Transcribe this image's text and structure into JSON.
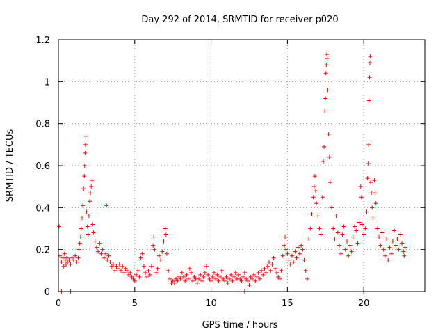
{
  "chart_data": {
    "type": "scatter",
    "title": "Day 292 of 2014, SRMTID for receiver p020",
    "xlabel": "GPS time / hours",
    "ylabel": "SRMTID / TECUs",
    "xlim": [
      0,
      24
    ],
    "ylim": [
      0,
      1.2
    ],
    "xticks": [
      0,
      5,
      10,
      15,
      20
    ],
    "xtick_labels": [
      "0",
      "5",
      "10",
      "15",
      "20"
    ],
    "yticks": [
      0,
      0.2,
      0.4,
      0.6,
      0.8,
      1,
      1.2
    ],
    "ytick_labels": [
      "0",
      "0.2",
      "0.4",
      "0.6",
      "0.8",
      "1",
      "1.2"
    ],
    "grid": true,
    "marker": "+",
    "color": "#ff0000",
    "series": [
      {
        "name": "SRMTID",
        "points": [
          [
            0.05,
            0.31
          ],
          [
            0.1,
            0.17
          ],
          [
            0.2,
            0.14
          ],
          [
            0.3,
            0.16
          ],
          [
            0.35,
            0.12
          ],
          [
            0.4,
            0.18
          ],
          [
            0.45,
            0.15
          ],
          [
            0.5,
            0.13
          ],
          [
            0.55,
            0.16
          ],
          [
            0.6,
            0.14
          ],
          [
            0.7,
            0.15
          ],
          [
            0.8,
            0.13
          ],
          [
            0.9,
            0.16
          ],
          [
            1.0,
            0.15
          ],
          [
            1.1,
            0.17
          ],
          [
            1.2,
            0.14
          ],
          [
            1.3,
            0.16
          ],
          [
            1.35,
            0.2
          ],
          [
            1.4,
            0.23
          ],
          [
            1.45,
            0.26
          ],
          [
            1.5,
            0.3
          ],
          [
            1.55,
            0.35
          ],
          [
            1.6,
            0.41
          ],
          [
            1.65,
            0.49
          ],
          [
            1.7,
            0.55
          ],
          [
            1.72,
            0.6
          ],
          [
            1.75,
            0.66
          ],
          [
            1.77,
            0.7
          ],
          [
            1.8,
            0.74
          ],
          [
            1.85,
            0.38
          ],
          [
            1.9,
            0.31
          ],
          [
            1.95,
            0.27
          ],
          [
            2.0,
            0.36
          ],
          [
            2.05,
            0.43
          ],
          [
            2.1,
            0.47
          ],
          [
            2.15,
            0.5
          ],
          [
            2.2,
            0.53
          ],
          [
            2.25,
            0.32
          ],
          [
            2.3,
            0.28
          ],
          [
            2.4,
            0.24
          ],
          [
            2.5,
            0.21
          ],
          [
            2.6,
            0.19
          ],
          [
            2.7,
            0.23
          ],
          [
            2.8,
            0.18
          ],
          [
            2.9,
            0.2
          ],
          [
            3.0,
            0.16
          ],
          [
            3.1,
            0.18
          ],
          [
            3.15,
            0.41
          ],
          [
            3.2,
            0.15
          ],
          [
            3.3,
            0.17
          ],
          [
            3.4,
            0.14
          ],
          [
            3.5,
            0.12
          ],
          [
            3.6,
            0.13
          ],
          [
            3.7,
            0.1
          ],
          [
            3.8,
            0.12
          ],
          [
            3.9,
            0.11
          ],
          [
            4.0,
            0.13
          ],
          [
            4.1,
            0.1
          ],
          [
            4.2,
            0.12
          ],
          [
            4.3,
            0.09
          ],
          [
            4.4,
            0.11
          ],
          [
            4.5,
            0.1
          ],
          [
            4.6,
            0.08
          ],
          [
            4.7,
            0.09
          ],
          [
            4.8,
            0.07
          ],
          [
            4.9,
            0.06
          ],
          [
            5.0,
            0.05
          ],
          [
            5.1,
            0.08
          ],
          [
            5.2,
            0.1
          ],
          [
            5.3,
            0.07
          ],
          [
            5.4,
            0.16
          ],
          [
            5.5,
            0.18
          ],
          [
            5.6,
            0.12
          ],
          [
            5.7,
            0.09
          ],
          [
            5.8,
            0.07
          ],
          [
            5.9,
            0.1
          ],
          [
            6.0,
            0.08
          ],
          [
            6.1,
            0.12
          ],
          [
            6.2,
            0.22
          ],
          [
            6.25,
            0.26
          ],
          [
            6.3,
            0.2
          ],
          [
            6.4,
            0.09
          ],
          [
            6.5,
            0.11
          ],
          [
            6.6,
            0.17
          ],
          [
            6.7,
            0.15
          ],
          [
            6.8,
            0.19
          ],
          [
            6.9,
            0.24
          ],
          [
            7.0,
            0.3
          ],
          [
            7.05,
            0.27
          ],
          [
            7.1,
            0.18
          ],
          [
            7.2,
            0.1
          ],
          [
            7.3,
            0.06
          ],
          [
            7.4,
            0.04
          ],
          [
            7.5,
            0.05
          ],
          [
            7.6,
            0.04
          ],
          [
            7.7,
            0.06
          ],
          [
            7.8,
            0.05
          ],
          [
            7.9,
            0.07
          ],
          [
            8.0,
            0.06
          ],
          [
            8.1,
            0.09
          ],
          [
            8.2,
            0.07
          ],
          [
            8.3,
            0.05
          ],
          [
            8.4,
            0.08
          ],
          [
            8.5,
            0.06
          ],
          [
            8.6,
            0.11
          ],
          [
            8.7,
            0.09
          ],
          [
            8.8,
            0.05
          ],
          [
            8.9,
            0.07
          ],
          [
            9.0,
            0.06
          ],
          [
            9.1,
            0.04
          ],
          [
            9.2,
            0.06
          ],
          [
            9.3,
            0.08
          ],
          [
            9.4,
            0.05
          ],
          [
            9.5,
            0.07
          ],
          [
            9.6,
            0.09
          ],
          [
            9.7,
            0.12
          ],
          [
            9.8,
            0.08
          ],
          [
            9.9,
            0.06
          ],
          [
            10.0,
            0.05
          ],
          [
            10.1,
            0.07
          ],
          [
            10.2,
            0.09
          ],
          [
            10.3,
            0.06
          ],
          [
            10.4,
            0.08
          ],
          [
            10.5,
            0.05
          ],
          [
            10.6,
            0.07
          ],
          [
            10.7,
            0.1
          ],
          [
            10.8,
            0.06
          ],
          [
            10.9,
            0.05
          ],
          [
            11.0,
            0.07
          ],
          [
            11.1,
            0.04
          ],
          [
            11.2,
            0.06
          ],
          [
            11.3,
            0.08
          ],
          [
            11.4,
            0.05
          ],
          [
            11.5,
            0.07
          ],
          [
            11.6,
            0.09
          ],
          [
            11.7,
            0.06
          ],
          [
            11.8,
            0.08
          ],
          [
            11.9,
            0.06
          ],
          [
            12.0,
            0.05
          ],
          [
            12.1,
            0.07
          ],
          [
            12.2,
            0.09
          ],
          [
            12.3,
            0.06
          ],
          [
            12.4,
            0.05
          ],
          [
            12.5,
            0.03
          ],
          [
            12.6,
            0.07
          ],
          [
            12.7,
            0.06
          ],
          [
            12.8,
            0.08
          ],
          [
            12.9,
            0.05
          ],
          [
            13.0,
            0.07
          ],
          [
            13.1,
            0.09
          ],
          [
            13.2,
            0.06
          ],
          [
            13.3,
            0.1
          ],
          [
            13.4,
            0.08
          ],
          [
            13.5,
            0.11
          ],
          [
            13.6,
            0.09
          ],
          [
            13.7,
            0.12
          ],
          [
            13.8,
            0.14
          ],
          [
            13.9,
            0.1
          ],
          [
            14.0,
            0.13
          ],
          [
            14.1,
            0.16
          ],
          [
            14.2,
            0.11
          ],
          [
            14.3,
            0.09
          ],
          [
            14.4,
            0.07
          ],
          [
            14.5,
            0.06
          ],
          [
            14.6,
            0.1
          ],
          [
            14.7,
            0.17
          ],
          [
            14.8,
            0.22
          ],
          [
            14.85,
            0.26
          ],
          [
            14.9,
            0.2
          ],
          [
            15.0,
            0.18
          ],
          [
            15.1,
            0.15
          ],
          [
            15.2,
            0.13
          ],
          [
            15.3,
            0.17
          ],
          [
            15.4,
            0.14
          ],
          [
            15.5,
            0.19
          ],
          [
            15.6,
            0.16
          ],
          [
            15.7,
            0.21
          ],
          [
            15.8,
            0.18
          ],
          [
            15.9,
            0.22
          ],
          [
            16.0,
            0.2
          ],
          [
            16.1,
            0.15
          ],
          [
            16.2,
            0.1
          ],
          [
            16.3,
            0.06
          ],
          [
            16.4,
            0.25
          ],
          [
            16.5,
            0.3
          ],
          [
            16.6,
            0.37
          ],
          [
            16.7,
            0.45
          ],
          [
            16.75,
            0.5
          ],
          [
            16.8,
            0.55
          ],
          [
            16.85,
            0.48
          ],
          [
            16.9,
            0.42
          ],
          [
            17.0,
            0.36
          ],
          [
            17.1,
            0.3
          ],
          [
            17.2,
            0.27
          ],
          [
            17.3,
            0.45
          ],
          [
            17.35,
            0.62
          ],
          [
            17.4,
            0.69
          ],
          [
            17.45,
            0.86
          ],
          [
            17.5,
            0.92
          ],
          [
            17.52,
            1.04
          ],
          [
            17.55,
            1.08
          ],
          [
            17.58,
            1.13
          ],
          [
            17.6,
            1.11
          ],
          [
            17.65,
            0.96
          ],
          [
            17.7,
            0.75
          ],
          [
            17.75,
            0.64
          ],
          [
            17.8,
            0.52
          ],
          [
            17.9,
            0.4
          ],
          [
            18.0,
            0.3
          ],
          [
            18.1,
            0.25
          ],
          [
            18.2,
            0.36
          ],
          [
            18.3,
            0.28
          ],
          [
            18.4,
            0.22
          ],
          [
            18.5,
            0.18
          ],
          [
            18.6,
            0.27
          ],
          [
            18.7,
            0.31
          ],
          [
            18.8,
            0.2
          ],
          [
            18.9,
            0.24
          ],
          [
            19.0,
            0.17
          ],
          [
            19.1,
            0.22
          ],
          [
            19.2,
            0.19
          ],
          [
            19.3,
            0.26
          ],
          [
            19.4,
            0.31
          ],
          [
            19.5,
            0.29
          ],
          [
            19.6,
            0.23
          ],
          [
            19.7,
            0.33
          ],
          [
            19.8,
            0.5
          ],
          [
            19.85,
            0.45
          ],
          [
            19.9,
            0.32
          ],
          [
            20.0,
            0.27
          ],
          [
            20.1,
            0.3
          ],
          [
            20.2,
            0.38
          ],
          [
            20.25,
            0.54
          ],
          [
            20.3,
            0.61
          ],
          [
            20.32,
            0.7
          ],
          [
            20.35,
            0.91
          ],
          [
            20.38,
            1.02
          ],
          [
            20.4,
            1.09
          ],
          [
            20.42,
            1.12
          ],
          [
            20.45,
            0.52
          ],
          [
            20.5,
            0.47
          ],
          [
            20.55,
            0.4
          ],
          [
            20.6,
            0.35
          ],
          [
            20.7,
            0.53
          ],
          [
            20.75,
            0.47
          ],
          [
            20.8,
            0.42
          ],
          [
            20.9,
            0.3
          ],
          [
            21.0,
            0.26
          ],
          [
            21.1,
            0.22
          ],
          [
            21.2,
            0.28
          ],
          [
            21.3,
            0.2
          ],
          [
            21.4,
            0.17
          ],
          [
            21.5,
            0.25
          ],
          [
            21.6,
            0.15
          ],
          [
            21.7,
            0.21
          ],
          [
            21.8,
            0.18
          ],
          [
            21.9,
            0.24
          ],
          [
            22.0,
            0.29
          ],
          [
            22.1,
            0.22
          ],
          [
            22.2,
            0.25
          ],
          [
            22.3,
            0.2
          ],
          [
            22.4,
            0.27
          ],
          [
            22.5,
            0.23
          ],
          [
            22.6,
            0.19
          ],
          [
            22.65,
            0.17
          ],
          [
            22.7,
            0.21
          ],
          [
            0.2,
            0.0
          ],
          [
            0.8,
            0.0
          ],
          [
            12.2,
            0.0
          ],
          [
            20.0,
            0.0
          ]
        ]
      }
    ]
  }
}
